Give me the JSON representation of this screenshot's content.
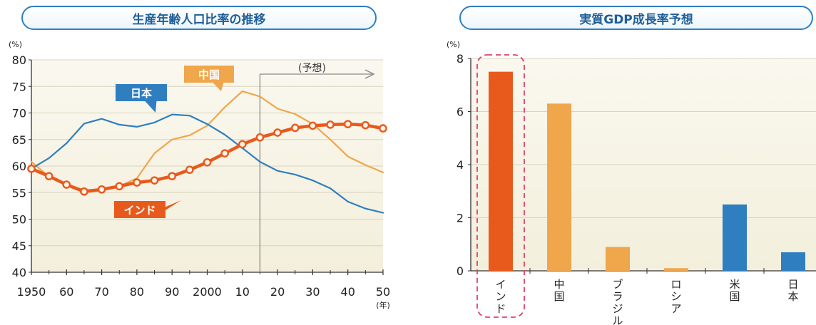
{
  "chart_data": [
    {
      "type": "line",
      "title": "生産年齢人口比率の推移",
      "yunit": "(%)",
      "xunit": "(年)",
      "ylim": [
        40,
        80
      ],
      "yticks": [
        40,
        45,
        50,
        55,
        60,
        65,
        70,
        75,
        80
      ],
      "xlim": [
        1950,
        2050
      ],
      "xticks": [
        {
          "value": 1950,
          "label": "1950"
        },
        {
          "value": 1960,
          "label": "60"
        },
        {
          "value": 1970,
          "label": "70"
        },
        {
          "value": 1980,
          "label": "80"
        },
        {
          "value": 1990,
          "label": "90"
        },
        {
          "value": 2000,
          "label": "2000"
        },
        {
          "value": 2010,
          "label": "10"
        },
        {
          "value": 2020,
          "label": "20"
        },
        {
          "value": 2030,
          "label": "30"
        },
        {
          "value": 2040,
          "label": "40"
        },
        {
          "value": 2050,
          "label": "50"
        }
      ],
      "forecast": {
        "start": 2015,
        "label": "(予想)"
      },
      "grid": true,
      "x": [
        1950,
        1955,
        1960,
        1965,
        1970,
        1975,
        1980,
        1985,
        1990,
        1995,
        2000,
        2005,
        2010,
        2015,
        2020,
        2025,
        2030,
        2035,
        2040,
        2045,
        2050
      ],
      "series": [
        {
          "name": "日本",
          "color": "#2f7fc0",
          "marker": false,
          "values": [
            59.5,
            61.5,
            64.3,
            68.0,
            68.9,
            67.8,
            67.4,
            68.2,
            69.7,
            69.5,
            67.9,
            65.9,
            63.4,
            60.8,
            59.1,
            58.4,
            57.3,
            55.8,
            53.3,
            52.0,
            51.2
          ]
        },
        {
          "name": "中国",
          "color": "#f0a64a",
          "marker": false,
          "values": [
            60.8,
            58.0,
            56.5,
            55.5,
            55.6,
            56.2,
            57.7,
            62.4,
            65.0,
            65.8,
            67.6,
            71.1,
            74.1,
            73.1,
            70.8,
            69.8,
            67.9,
            65.0,
            61.8,
            60.2,
            58.8
          ]
        },
        {
          "name": "インド",
          "color": "#e85a1c",
          "marker": true,
          "values": [
            59.5,
            58.1,
            56.5,
            55.2,
            55.6,
            56.2,
            56.9,
            57.3,
            58.1,
            59.3,
            60.7,
            62.4,
            64.1,
            65.4,
            66.3,
            67.2,
            67.6,
            67.8,
            67.9,
            67.7,
            67.1
          ]
        }
      ]
    },
    {
      "type": "bar",
      "title": "実質GDP成長率予想",
      "yunit": "(%)",
      "ylim": [
        0,
        8
      ],
      "yticks": [
        0,
        2,
        4,
        6,
        8
      ],
      "grid": true,
      "categories": [
        "インド",
        "中国",
        "ブラジル",
        "ロシア",
        "米国",
        "日本"
      ],
      "values": [
        7.5,
        6.3,
        0.9,
        0.1,
        2.5,
        0.7
      ],
      "colors": [
        "#e85a1c",
        "#f0a64a",
        "#f0a64a",
        "#f0a64a",
        "#2f7fc0",
        "#2f7fc0"
      ],
      "highlight": "インド"
    }
  ]
}
